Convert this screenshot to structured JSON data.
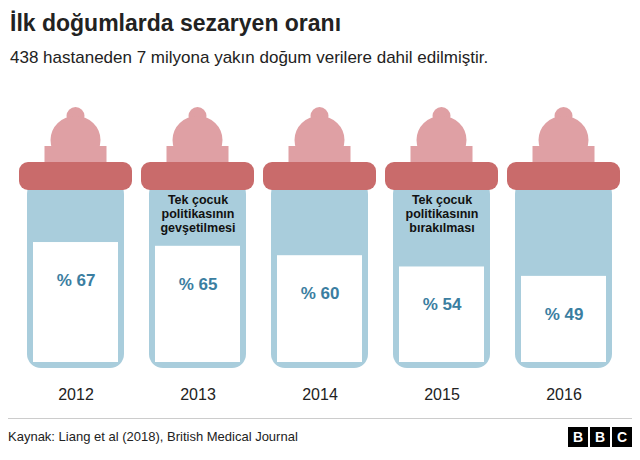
{
  "chart_data": {
    "type": "bar",
    "title": "İlk doğumlarda sezaryen oranı",
    "subtitle": "438 hastaneden 7 milyona yakın doğum verilere dahil edilmiştir.",
    "categories": [
      "2012",
      "2013",
      "2014",
      "2015",
      "2016"
    ],
    "values": [
      67,
      65,
      60,
      54,
      49
    ],
    "value_labels": [
      "% 67",
      "% 65",
      "% 60",
      "% 54",
      "% 49"
    ],
    "data_labels": true,
    "color": "#ffffff",
    "ylim": [
      0,
      100
    ],
    "tick_labels": "x",
    "annotations": [
      {
        "category": "2013",
        "text": "Tek çocuk politikasının gevşetilmesi"
      },
      {
        "category": "2015",
        "text": "Tek çocuk politikasının bırakılması"
      }
    ],
    "caption": "Kaynak: Liang et al (2018), British Medical Journal",
    "logo": "BBC"
  }
}
